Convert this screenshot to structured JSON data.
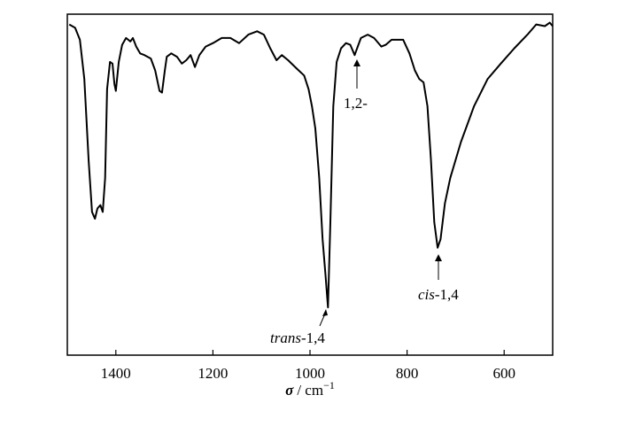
{
  "chart_data": {
    "type": "line",
    "x_label": {
      "symbol": "σ",
      "unit": "/ cm",
      "exponent": "−1"
    },
    "xlim": [
      1500,
      500
    ],
    "ylim": [
      0,
      100
    ],
    "xticks": [
      1400,
      1200,
      1000,
      800,
      600
    ],
    "series": [
      {
        "color": "#000000",
        "x": [
          1496,
          1484,
          1474,
          1465,
          1456,
          1449,
          1443,
          1438,
          1432,
          1427,
          1422,
          1418,
          1412,
          1407,
          1403,
          1400,
          1394,
          1387,
          1379,
          1370,
          1365,
          1358,
          1350,
          1341,
          1328,
          1319,
          1310,
          1305,
          1299,
          1295,
          1286,
          1274,
          1264,
          1255,
          1246,
          1237,
          1228,
          1215,
          1200,
          1182,
          1164,
          1146,
          1127,
          1109,
          1095,
          1082,
          1069,
          1058,
          1045,
          1027,
          1012,
          1003,
          996,
          989,
          981,
          974,
          968,
          963,
          958,
          952,
          945,
          936,
          926,
          917,
          908,
          903,
          895,
          881,
          868,
          853,
          844,
          832,
          808,
          795,
          784,
          775,
          766,
          758,
          751,
          744,
          737,
          731,
          722,
          711,
          689,
          662,
          634,
          607,
          579,
          552,
          534,
          516,
          506,
          500
        ],
        "values": [
          97,
          96,
          92.5,
          81,
          57,
          42,
          40,
          43,
          44,
          42,
          52,
          78,
          86,
          85.5,
          79.5,
          77.5,
          86,
          91,
          93,
          92,
          93,
          90.5,
          88.5,
          88,
          87,
          83.5,
          77.5,
          77,
          83.5,
          87.5,
          88.5,
          87.5,
          85.5,
          86.5,
          88,
          84.5,
          88,
          90.5,
          91.5,
          93,
          93,
          91.5,
          94,
          95,
          94,
          90,
          86.5,
          88,
          86.5,
          84,
          82,
          78,
          73,
          66.5,
          52,
          34,
          23.5,
          14,
          39,
          73,
          86,
          90,
          91.5,
          91,
          88,
          90,
          93,
          94,
          93,
          90.5,
          91,
          92.5,
          92.5,
          88.5,
          83.5,
          81,
          80,
          73,
          57.5,
          39,
          31.5,
          34,
          44.5,
          52,
          62.5,
          73,
          81,
          85.5,
          90,
          94,
          97,
          96.5,
          97.5,
          96.5
        ]
      }
    ],
    "annotations": [
      {
        "italic": "trans",
        "text": "-1,4"
      },
      {
        "text": "1,2-"
      },
      {
        "italic": "cis",
        "text": "-1,4"
      }
    ]
  }
}
